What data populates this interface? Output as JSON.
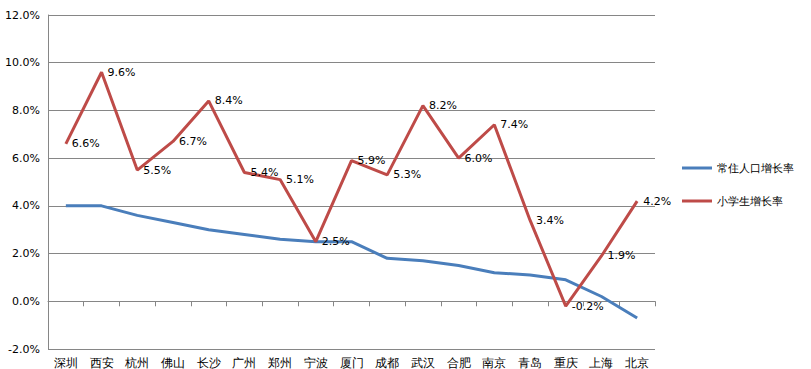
{
  "chart_data": {
    "type": "line",
    "categories": [
      "深圳",
      "西安",
      "杭州",
      "佛山",
      "长沙",
      "广州",
      "郑州",
      "宁波",
      "厦门",
      "成都",
      "武汉",
      "合肥",
      "南京",
      "青岛",
      "重庆",
      "上海",
      "北京"
    ],
    "series": [
      {
        "name": "常住人口增长率",
        "color": "#4a7ebb",
        "marker": "none",
        "line_style": "solid",
        "values": [
          4.0,
          4.0,
          3.6,
          3.3,
          3.0,
          2.8,
          2.6,
          2.5,
          2.5,
          1.8,
          1.7,
          1.5,
          1.2,
          1.1,
          0.9,
          0.2,
          -0.7
        ]
      },
      {
        "name": "小学生增长率",
        "color": "#be4b48",
        "marker": "none",
        "line_style": "solid",
        "data_labels": true,
        "values": [
          6.6,
          9.6,
          5.5,
          6.7,
          8.4,
          5.4,
          5.1,
          2.5,
          5.9,
          5.3,
          8.2,
          6.0,
          7.4,
          3.4,
          -0.2,
          1.9,
          4.2
        ],
        "value_labels": [
          "6.6%",
          "9.6%",
          "5.5%",
          "6.7%",
          "8.4%",
          "5.4%",
          "5.1%",
          "2.5%",
          "5.9%",
          "5.3%",
          "8.2%",
          "6.0%",
          "7.4%",
          "3.4%",
          "-0.2%",
          "1.9%",
          "4.2%"
        ]
      }
    ],
    "ylim": [
      -2,
      12
    ],
    "yticks": [
      {
        "value": -2,
        "label": "-2.0%"
      },
      {
        "value": 0,
        "label": "0.0%"
      },
      {
        "value": 2,
        "label": "2.0%"
      },
      {
        "value": 4,
        "label": "4.0%"
      },
      {
        "value": 6,
        "label": "6.0%"
      },
      {
        "value": 8,
        "label": "8.0%"
      },
      {
        "value": 10,
        "label": "10.0%"
      },
      {
        "value": 12,
        "label": "12.0%"
      }
    ],
    "grid": true,
    "legend": "right"
  }
}
